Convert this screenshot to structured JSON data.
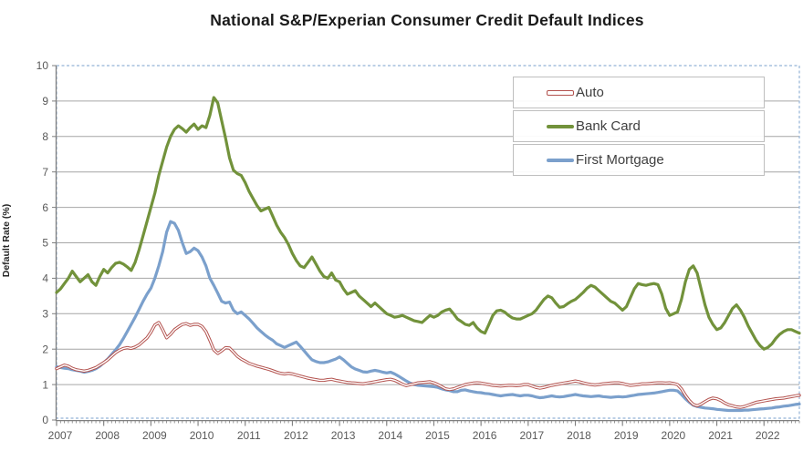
{
  "chart": {
    "title": "National S&P/Experian Consumer Credit Default Indices",
    "ylabel": "Default Rate (%)"
  },
  "chart_data": {
    "type": "line",
    "title": "National S&P/Experian Consumer Credit Default Indices",
    "xlabel": "",
    "ylabel": "Default Rate (%)",
    "ylim": [
      0,
      10
    ],
    "ytick_step": 1,
    "grid": "horizontal",
    "legend_position": "top-right-inside",
    "x_unit": "monthly",
    "x_start_year": 2007,
    "x_tick_labels": [
      "2007",
      "2008",
      "2009",
      "2010",
      "2011",
      "2012",
      "2013",
      "2014",
      "2015",
      "2016",
      "2017",
      "2018",
      "2019",
      "2020",
      "2021",
      "2022"
    ],
    "colors": {
      "auto": "#b3524e",
      "bank_card": "#72923b",
      "first_mortgage": "#7ba0cc",
      "grid": "#a6a6a6",
      "axis": "#7f7f7f",
      "border_dashed": "#95b3d7",
      "tick_text": "#595959"
    },
    "series": [
      {
        "name": "Auto",
        "color": "#b3524e",
        "style": "outlined",
        "values": [
          1.45,
          1.5,
          1.55,
          1.52,
          1.46,
          1.42,
          1.4,
          1.38,
          1.4,
          1.44,
          1.48,
          1.55,
          1.62,
          1.7,
          1.8,
          1.9,
          1.97,
          2.02,
          2.04,
          2.02,
          2.06,
          2.12,
          2.22,
          2.32,
          2.48,
          2.68,
          2.75,
          2.55,
          2.32,
          2.42,
          2.55,
          2.63,
          2.7,
          2.72,
          2.67,
          2.7,
          2.7,
          2.64,
          2.5,
          2.25,
          1.98,
          1.88,
          1.95,
          2.04,
          2.03,
          1.92,
          1.8,
          1.72,
          1.66,
          1.6,
          1.56,
          1.52,
          1.49,
          1.46,
          1.43,
          1.39,
          1.35,
          1.32,
          1.3,
          1.32,
          1.3,
          1.27,
          1.24,
          1.21,
          1.18,
          1.16,
          1.14,
          1.12,
          1.12,
          1.14,
          1.15,
          1.12,
          1.1,
          1.08,
          1.06,
          1.05,
          1.04,
          1.03,
          1.02,
          1.04,
          1.06,
          1.08,
          1.1,
          1.12,
          1.14,
          1.15,
          1.12,
          1.07,
          1.01,
          0.97,
          1.0,
          1.02,
          1.05,
          1.06,
          1.07,
          1.08,
          1.05,
          1.0,
          0.94,
          0.88,
          0.86,
          0.88,
          0.92,
          0.96,
          1.0,
          1.02,
          1.04,
          1.05,
          1.04,
          1.02,
          1.0,
          0.98,
          0.97,
          0.96,
          0.97,
          0.98,
          0.98,
          0.97,
          0.98,
          1.0,
          1.0,
          0.96,
          0.92,
          0.9,
          0.92,
          0.95,
          0.98,
          1.0,
          1.02,
          1.04,
          1.06,
          1.08,
          1.1,
          1.08,
          1.05,
          1.02,
          1.0,
          0.99,
          1.0,
          1.02,
          1.03,
          1.04,
          1.05,
          1.05,
          1.03,
          1.0,
          0.98,
          0.99,
          1.0,
          1.02,
          1.02,
          1.03,
          1.04,
          1.05,
          1.05,
          1.04,
          1.05,
          1.03,
          1.0,
          0.88,
          0.7,
          0.55,
          0.44,
          0.4,
          0.45,
          0.52,
          0.58,
          0.62,
          0.6,
          0.55,
          0.48,
          0.43,
          0.4,
          0.37,
          0.36,
          0.38,
          0.42,
          0.46,
          0.5,
          0.52,
          0.54,
          0.56,
          0.58,
          0.6,
          0.61,
          0.62,
          0.64,
          0.66,
          0.68,
          0.7
        ]
      },
      {
        "name": "Bank Card",
        "color": "#72923b",
        "style": "solid",
        "values": [
          3.6,
          3.7,
          3.85,
          4.0,
          4.2,
          4.05,
          3.9,
          4.0,
          4.1,
          3.9,
          3.8,
          4.05,
          4.25,
          4.15,
          4.3,
          4.42,
          4.45,
          4.4,
          4.32,
          4.22,
          4.45,
          4.8,
          5.2,
          5.6,
          6.0,
          6.4,
          6.9,
          7.3,
          7.7,
          8.0,
          8.2,
          8.3,
          8.22,
          8.12,
          8.25,
          8.35,
          8.2,
          8.3,
          8.25,
          8.6,
          9.1,
          8.95,
          8.45,
          7.95,
          7.4,
          7.05,
          6.95,
          6.9,
          6.7,
          6.45,
          6.25,
          6.05,
          5.9,
          5.95,
          6.0,
          5.75,
          5.5,
          5.3,
          5.15,
          4.95,
          4.7,
          4.5,
          4.35,
          4.3,
          4.45,
          4.6,
          4.4,
          4.2,
          4.05,
          4.0,
          4.15,
          3.95,
          3.9,
          3.7,
          3.55,
          3.6,
          3.65,
          3.5,
          3.4,
          3.3,
          3.2,
          3.3,
          3.2,
          3.1,
          3.0,
          2.95,
          2.9,
          2.92,
          2.95,
          2.9,
          2.85,
          2.8,
          2.78,
          2.75,
          2.85,
          2.95,
          2.9,
          2.95,
          3.05,
          3.1,
          3.13,
          3.0,
          2.85,
          2.78,
          2.7,
          2.67,
          2.75,
          2.6,
          2.5,
          2.45,
          2.7,
          2.95,
          3.08,
          3.1,
          3.05,
          2.95,
          2.88,
          2.85,
          2.85,
          2.9,
          2.95,
          3.0,
          3.1,
          3.25,
          3.4,
          3.5,
          3.45,
          3.3,
          3.18,
          3.2,
          3.28,
          3.35,
          3.4,
          3.5,
          3.6,
          3.72,
          3.8,
          3.75,
          3.65,
          3.55,
          3.45,
          3.35,
          3.3,
          3.2,
          3.1,
          3.2,
          3.45,
          3.7,
          3.85,
          3.82,
          3.8,
          3.83,
          3.85,
          3.82,
          3.55,
          3.15,
          2.95,
          3.0,
          3.05,
          3.4,
          3.9,
          4.25,
          4.35,
          4.15,
          3.7,
          3.25,
          2.9,
          2.7,
          2.55,
          2.6,
          2.75,
          2.95,
          3.15,
          3.25,
          3.1,
          2.9,
          2.65,
          2.45,
          2.25,
          2.1,
          2.0,
          2.05,
          2.15,
          2.3,
          2.42,
          2.5,
          2.55,
          2.55,
          2.5,
          2.45
        ]
      },
      {
        "name": "First Mortgage",
        "color": "#7ba0cc",
        "style": "solid",
        "values": [
          1.5,
          1.48,
          1.46,
          1.45,
          1.42,
          1.4,
          1.38,
          1.35,
          1.37,
          1.4,
          1.45,
          1.52,
          1.62,
          1.72,
          1.85,
          1.98,
          2.12,
          2.3,
          2.5,
          2.7,
          2.9,
          3.12,
          3.35,
          3.55,
          3.72,
          4.0,
          4.35,
          4.75,
          5.3,
          5.6,
          5.55,
          5.35,
          5.0,
          4.7,
          4.75,
          4.85,
          4.78,
          4.6,
          4.35,
          4.0,
          3.8,
          3.58,
          3.35,
          3.3,
          3.33,
          3.1,
          3.0,
          3.05,
          2.95,
          2.85,
          2.73,
          2.6,
          2.5,
          2.4,
          2.32,
          2.25,
          2.15,
          2.1,
          2.05,
          2.1,
          2.15,
          2.2,
          2.08,
          1.95,
          1.82,
          1.7,
          1.65,
          1.62,
          1.62,
          1.64,
          1.68,
          1.72,
          1.78,
          1.7,
          1.6,
          1.5,
          1.44,
          1.4,
          1.36,
          1.35,
          1.38,
          1.4,
          1.38,
          1.35,
          1.33,
          1.35,
          1.3,
          1.24,
          1.17,
          1.1,
          1.04,
          1.0,
          0.98,
          0.97,
          0.96,
          0.95,
          0.94,
          0.92,
          0.88,
          0.85,
          0.83,
          0.8,
          0.8,
          0.84,
          0.85,
          0.82,
          0.8,
          0.78,
          0.77,
          0.75,
          0.74,
          0.72,
          0.7,
          0.68,
          0.7,
          0.71,
          0.72,
          0.7,
          0.68,
          0.7,
          0.7,
          0.68,
          0.65,
          0.63,
          0.64,
          0.66,
          0.68,
          0.66,
          0.65,
          0.66,
          0.68,
          0.7,
          0.72,
          0.7,
          0.68,
          0.67,
          0.66,
          0.67,
          0.68,
          0.66,
          0.65,
          0.64,
          0.65,
          0.66,
          0.65,
          0.66,
          0.68,
          0.7,
          0.72,
          0.73,
          0.74,
          0.75,
          0.76,
          0.78,
          0.8,
          0.82,
          0.84,
          0.84,
          0.82,
          0.72,
          0.6,
          0.5,
          0.42,
          0.38,
          0.36,
          0.34,
          0.33,
          0.32,
          0.3,
          0.29,
          0.28,
          0.27,
          0.27,
          0.27,
          0.27,
          0.28,
          0.28,
          0.29,
          0.3,
          0.31,
          0.32,
          0.33,
          0.34,
          0.36,
          0.37,
          0.39,
          0.4,
          0.42,
          0.44,
          0.45
        ]
      }
    ]
  }
}
